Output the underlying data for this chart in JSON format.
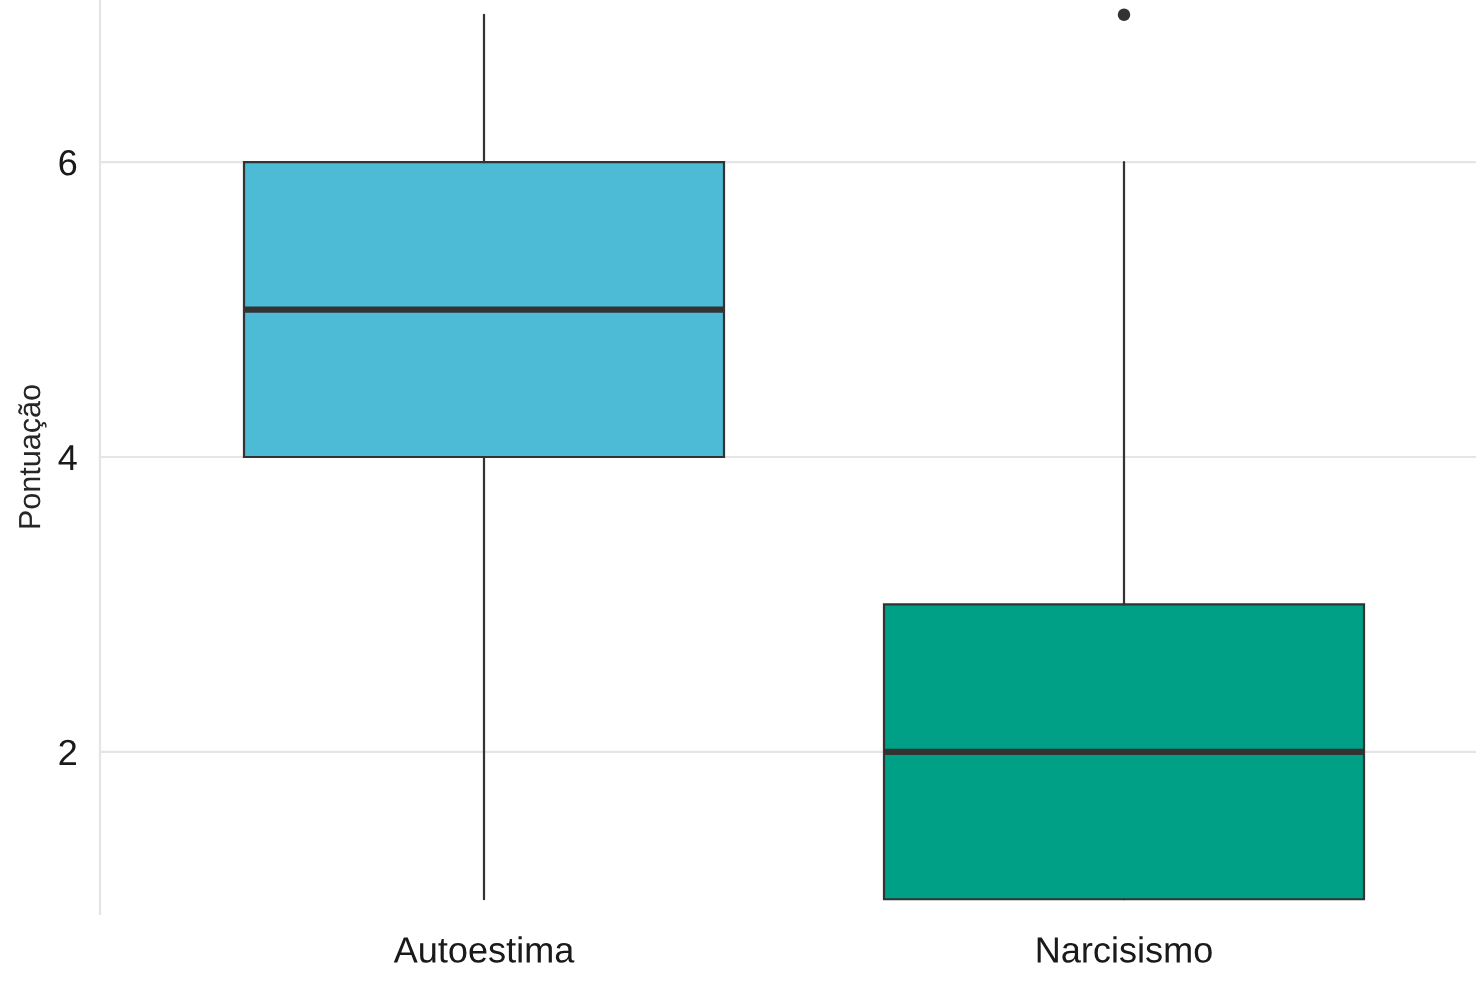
{
  "chart_data": {
    "type": "box",
    "ylabel": "Pontuação",
    "categories": [
      "Autoestima",
      "Narcisismo"
    ],
    "series": [
      {
        "colors": [
          "#4dbbd5",
          "#00a087"
        ],
        "boxes": [
          {
            "low": 1,
            "q1": 4,
            "median": 5,
            "q3": 6,
            "high": 7
          },
          {
            "low": 1,
            "q1": 1,
            "median": 2,
            "q3": 3,
            "high": 6,
            "outliers": [
              7
            ]
          }
        ]
      }
    ],
    "ylim": [
      0.9,
      7.1
    ],
    "yticks": [
      2,
      4,
      6
    ],
    "grid": "y"
  }
}
